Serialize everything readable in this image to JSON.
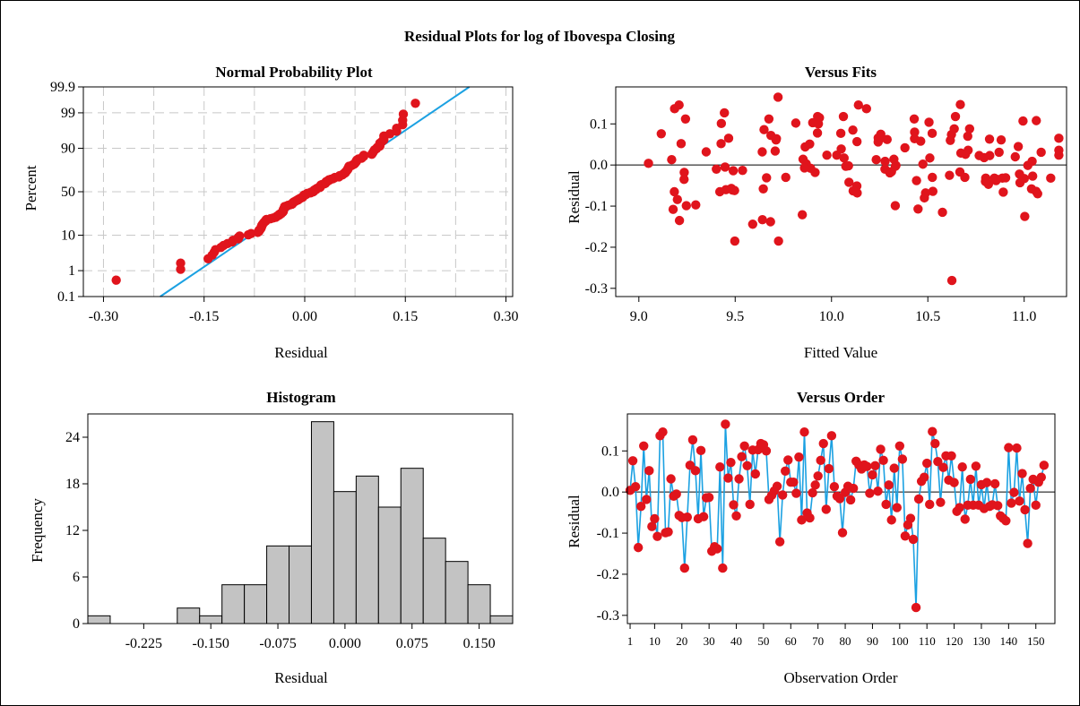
{
  "main_title": "Residual Plots for log of Ibovespa Closing",
  "colors": {
    "point": "#e0141c",
    "line": "#1ba1e2",
    "bar": "#c3c3c3",
    "grid": "#c8c8c8",
    "border": "#000000"
  },
  "chart_data": [
    {
      "id": "normal-probability",
      "type": "scatter",
      "title": "Normal Probability Plot",
      "xlabel": "Residual",
      "ylabel": "Percent",
      "xlim": [
        -0.33,
        0.31
      ],
      "xticks": [
        "-0.30",
        "-0.15",
        "0.00",
        "0.15",
        "0.30"
      ],
      "yticks": [
        "0.1",
        "1",
        "10",
        "50",
        "90",
        "99",
        "99.9"
      ],
      "yscale": "normal-probability",
      "grid": true,
      "fit_line": {
        "x": [
          -0.2154,
          0.2454
        ],
        "percent": [
          0.1,
          99.9
        ]
      }
    },
    {
      "id": "versus-fits",
      "type": "scatter",
      "title": "Versus Fits",
      "xlabel": "Fitted Value",
      "ylabel": "Residual",
      "xlim": [
        8.88,
        11.22
      ],
      "ylim": [
        -0.32,
        0.19
      ],
      "xticks": [
        "9.0",
        "9.5",
        "10.0",
        "10.5",
        "11.0"
      ],
      "yticks": [
        "0.1",
        "0.0",
        "-0.1",
        "-0.2",
        "-0.3"
      ],
      "reference_line": 0,
      "grid": false
    },
    {
      "id": "histogram",
      "type": "bar",
      "title": "Histogram",
      "xlabel": "Residual",
      "ylabel": "Frequency",
      "bin_width": 0.025,
      "bin_starts": [
        -0.2875,
        -0.2625,
        -0.2375,
        -0.2125,
        -0.1875,
        -0.1625,
        -0.1375,
        -0.1125,
        -0.0875,
        -0.0625,
        -0.0375,
        -0.0125,
        0.0125,
        0.0375,
        0.0625,
        0.0875,
        0.1125,
        0.1375,
        0.1625
      ],
      "values": [
        1,
        0,
        0,
        0,
        2,
        1,
        5,
        5,
        10,
        10,
        26,
        17,
        19,
        15,
        20,
        11,
        8,
        5,
        1
      ],
      "xlim": [
        -0.2875,
        0.1875
      ],
      "ylim": [
        0,
        27
      ],
      "xticks": [
        "-0.225",
        "-0.150",
        "-0.075",
        "0.000",
        "0.075",
        "0.150"
      ],
      "yticks": [
        "0",
        "6",
        "12",
        "18",
        "24"
      ],
      "grid": false
    },
    {
      "id": "versus-order",
      "type": "line",
      "title": "Versus Order",
      "xlabel": "Observation Order",
      "ylabel": "Residual",
      "xlim": [
        0,
        157
      ],
      "ylim": [
        -0.32,
        0.19
      ],
      "xticks": [
        "1",
        "10",
        "20",
        "30",
        "40",
        "50",
        "60",
        "70",
        "80",
        "90",
        "100",
        "110",
        "120",
        "130",
        "140",
        "150"
      ],
      "yticks": [
        "0.1",
        "0.0",
        "-0.1",
        "-0.2",
        "-0.3"
      ],
      "reference_line": 0,
      "markers": true,
      "grid": false
    }
  ],
  "residuals": [
    0.004,
    0.076,
    0.013,
    -0.135,
    -0.035,
    0.112,
    -0.018,
    0.052,
    -0.084,
    -0.065,
    -0.108,
    0.137,
    0.146,
    -0.099,
    -0.097,
    0.032,
    -0.01,
    -0.005,
    -0.057,
    -0.062,
    -0.185,
    -0.061,
    0.065,
    0.127,
    0.052,
    -0.065,
    0.101,
    -0.06,
    -0.014,
    -0.013,
    -0.144,
    -0.133,
    -0.138,
    0.061,
    -0.185,
    0.165,
    0.034,
    0.072,
    -0.031,
    -0.058,
    0.032,
    0.086,
    0.112,
    0.064,
    -0.03,
    0.102,
    0.044,
    0.103,
    0.118,
    0.115,
    0.1,
    -0.018,
    -0.008,
    0.003,
    0.014,
    -0.121,
    -0.007,
    0.051,
    0.078,
    0.024,
    0.024,
    -0.003,
    0.085,
    -0.068,
    0.146,
    -0.051,
    -0.063,
    -0.002,
    0.017,
    0.039,
    0.077,
    0.118,
    -0.042,
    0.057,
    0.137,
    0.013,
    -0.01,
    -0.016,
    -0.099,
    -0.001,
    0.014,
    -0.019,
    0.009,
    0.075,
    0.066,
    0.056,
    0.066,
    0.062,
    -0.003,
    0.042,
    0.064,
    0.002,
    0.104,
    0.077,
    -0.03,
    0.017,
    -0.068,
    0.058,
    -0.038,
    0.112,
    0.08,
    -0.107,
    -0.08,
    -0.064,
    -0.115,
    -0.281,
    -0.017,
    0.026,
    0.036,
    0.07,
    -0.03,
    0.147,
    0.118,
    0.074,
    -0.025,
    0.06,
    0.088,
    0.029,
    0.088,
    0.023,
    -0.047,
    -0.038,
    0.061,
    -0.066,
    -0.032,
    0.031,
    -0.032,
    0.063,
    -0.032,
    0.018,
    -0.04,
    0.023,
    -0.035,
    -0.031,
    0.02,
    -0.033,
    -0.058,
    -0.064,
    -0.07,
    0.108,
    -0.027,
    -0.001,
    0.107,
    -0.022,
    0.045,
    -0.043,
    -0.125,
    0.009,
    0.031,
    -0.032,
    0.024,
    0.036,
    0.065
  ]
}
